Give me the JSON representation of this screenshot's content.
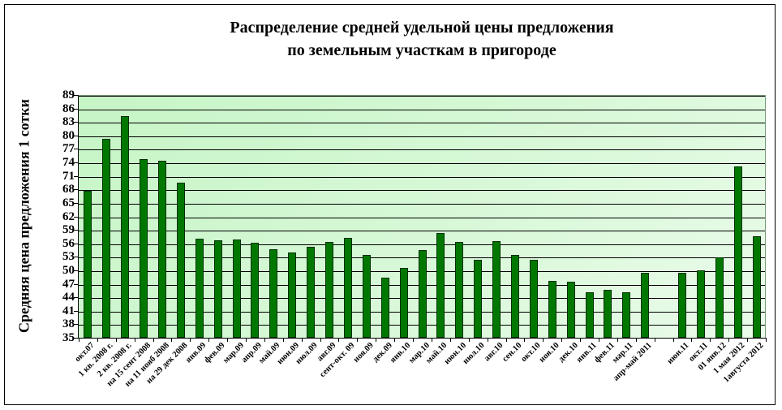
{
  "chart_data": {
    "type": "bar",
    "title": "Распределение средней удельной цены предложения по земельным участкам в пригороде",
    "title_lines": [
      "Распределение средней удельной цены предложения",
      "по земельным участкам в пригороде"
    ],
    "xlabel": "",
    "ylabel": "Средняя цена предложения 1 сотки",
    "ylim": [
      35,
      89
    ],
    "yticks": [
      35,
      38,
      41,
      44,
      47,
      50,
      53,
      56,
      59,
      62,
      65,
      68,
      71,
      74,
      77,
      80,
      83,
      86,
      89
    ],
    "grid": true,
    "legend": null,
    "bar_color": "#007800",
    "plot_background": "#d6f8d6",
    "categories": [
      "окт.07",
      "1 кв. 2008 г.",
      "2 кв. 2008 г.",
      "на 15 сент 2008",
      "на 11 нояб 2008",
      "на 29 дек 2008",
      "янв.09",
      "фев.09",
      "мар.09",
      "апр.09",
      "май.09",
      "июн.09",
      "июл.09",
      "авг.09",
      "сент-окт. 09",
      "ноя.09",
      "дек.09",
      "янв.10",
      "мар.10",
      "май.10",
      "июн.10",
      "июл.10",
      "авг.10",
      "сен.10",
      "окт.10",
      "ноя.10",
      "дек.10",
      "янв.11",
      "фев.11",
      "мар.11",
      "апр-май 2011",
      "",
      "июн.11",
      "окт.11",
      "01 янв.12",
      "1 мая 2012",
      "1августа 2012"
    ],
    "values": [
      67.7,
      79.2,
      84.3,
      74.7,
      74.4,
      69.5,
      57.0,
      56.7,
      56.9,
      56.1,
      54.7,
      54.0,
      55.2,
      56.3,
      57.2,
      53.5,
      48.4,
      50.5,
      54.5,
      58.3,
      56.3,
      52.3,
      56.5,
      53.5,
      52.3,
      47.6,
      47.4,
      45.1,
      45.6,
      45.2,
      49.5,
      null,
      49.5,
      50.0,
      52.9,
      73.1,
      57.6
    ]
  }
}
